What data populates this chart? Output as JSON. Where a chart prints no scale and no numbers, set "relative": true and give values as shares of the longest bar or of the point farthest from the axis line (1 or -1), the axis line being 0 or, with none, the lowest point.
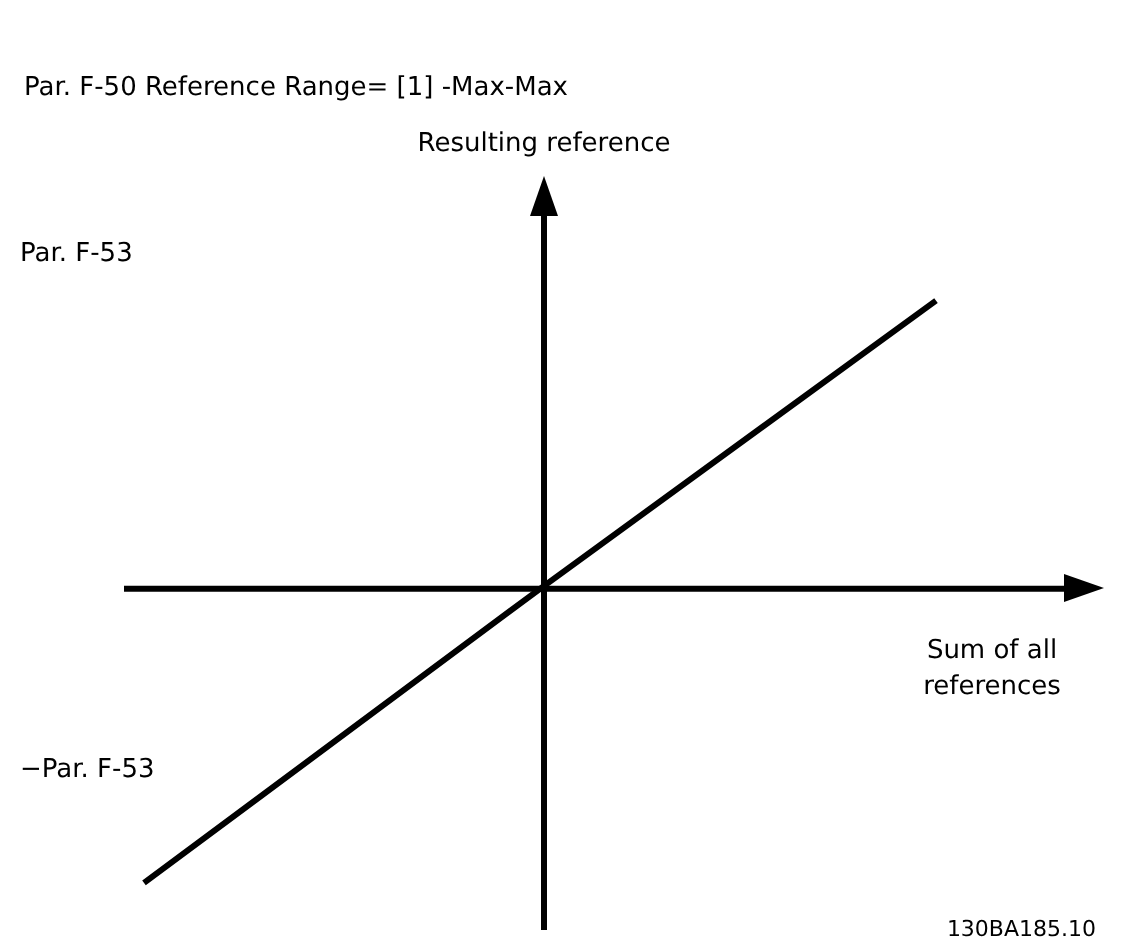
{
  "chart_data": {
    "type": "line",
    "title": "Par. F-50 Reference Range= [1] -Max-Max",
    "xlabel": "Sum of all references",
    "categories": [
      null,
      null,
      null
    ],
    "series": [
      {
        "color": "#000000",
        "values": [
          -1,
          0,
          0.98
        ]
      }
    ],
    "relative": true,
    "legend": false,
    "marker": "none",
    "line_style": "solid",
    "annotations": [
      "Resulting reference",
      "Par. F-53",
      "−Par. F-53",
      "130BA185.10"
    ]
  }
}
